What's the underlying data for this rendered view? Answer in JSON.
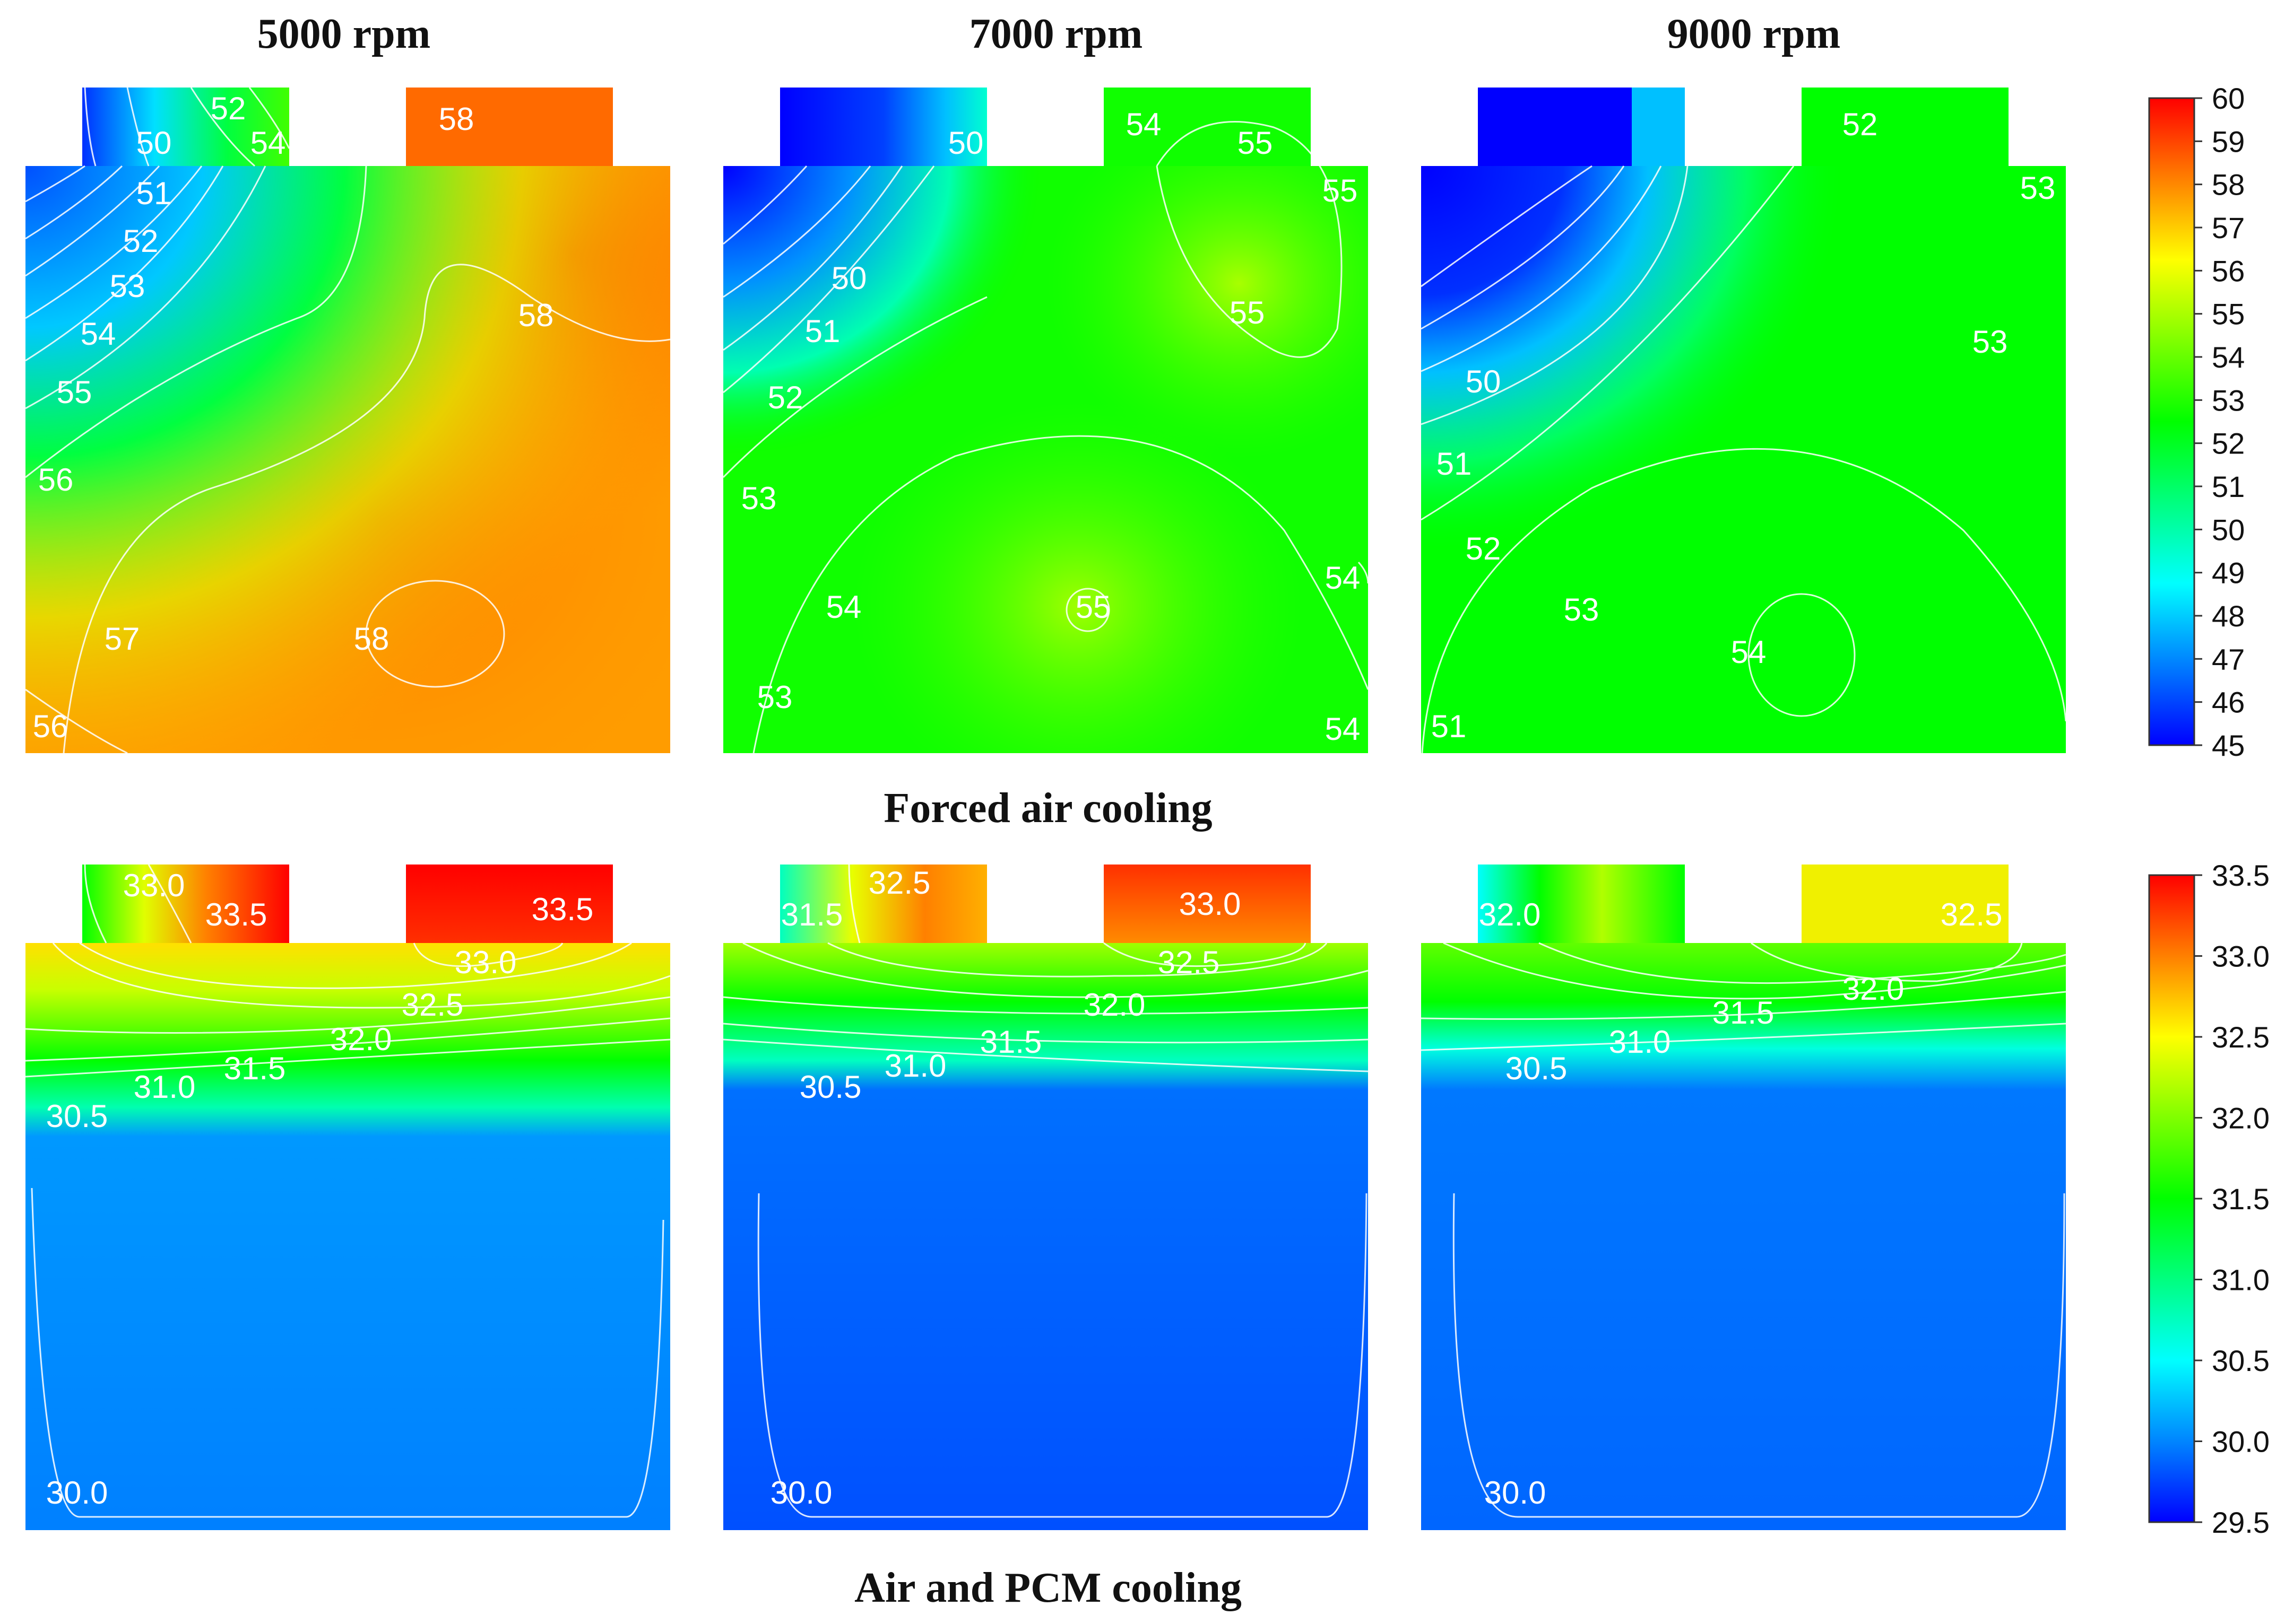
{
  "columns": [
    "5000 rpm",
    "7000 rpm",
    "9000 rpm"
  ],
  "rows": [
    "Forced air cooling",
    "Air and PCM cooling"
  ],
  "chart_data": [
    {
      "type": "heatmap",
      "title": "Forced air cooling",
      "colormap": [
        "#0000ff",
        "#00ffff",
        "#00ff00",
        "#ffff00",
        "#ff0000"
      ],
      "colorbar": {
        "min": 45,
        "max": 60,
        "ticks": [
          "45",
          "46",
          "47",
          "48",
          "49",
          "50",
          "51",
          "52",
          "53",
          "54",
          "55",
          "56",
          "57",
          "58",
          "59",
          "60"
        ]
      },
      "panels": [
        {
          "name": "5000 rpm",
          "contour_labels": [
            "52",
            "54",
            "50",
            "58",
            "51",
            "52",
            "53",
            "54",
            "55",
            "56",
            "57",
            "58",
            "56",
            "58"
          ],
          "base_value": 57.3
        },
        {
          "name": "7000 rpm",
          "contour_labels": [
            "54",
            "55",
            "50",
            "55",
            "50",
            "51",
            "55",
            "52",
            "53",
            "54",
            "55",
            "54",
            "53",
            "54"
          ],
          "base_value": 53.6
        },
        {
          "name": "9000 rpm",
          "contour_labels": [
            "52",
            "53",
            "53",
            "50",
            "51",
            "52",
            "53",
            "54",
            "51"
          ],
          "base_value": 52.8
        }
      ]
    },
    {
      "type": "heatmap",
      "title": "Air and PCM cooling",
      "colormap": [
        "#0000ff",
        "#00ffff",
        "#00ff00",
        "#ffff00",
        "#ff0000"
      ],
      "colorbar": {
        "min": 29.5,
        "max": 33.5,
        "ticks": [
          "29.5",
          "30.0",
          "30.5",
          "31.0",
          "31.5",
          "32.0",
          "32.5",
          "33.0",
          "33.5"
        ]
      },
      "panels": [
        {
          "name": "5000 rpm",
          "contour_labels": [
            "33.0",
            "33.5",
            "33.5",
            "33.0",
            "32.5",
            "32.0",
            "31.5",
            "31.0",
            "30.5",
            "30.0"
          ],
          "bottom_value": 30.1
        },
        {
          "name": "7000 rpm",
          "contour_labels": [
            "31.5",
            "32.5",
            "33.0",
            "32.5",
            "32.0",
            "31.5",
            "31.0",
            "30.5",
            "30.0"
          ],
          "bottom_value": 29.9
        },
        {
          "name": "9000 rpm",
          "contour_labels": [
            "32.0",
            "32.5",
            "32.0",
            "31.5",
            "31.0",
            "30.5",
            "30.0"
          ],
          "bottom_value": 30.0
        }
      ]
    }
  ]
}
